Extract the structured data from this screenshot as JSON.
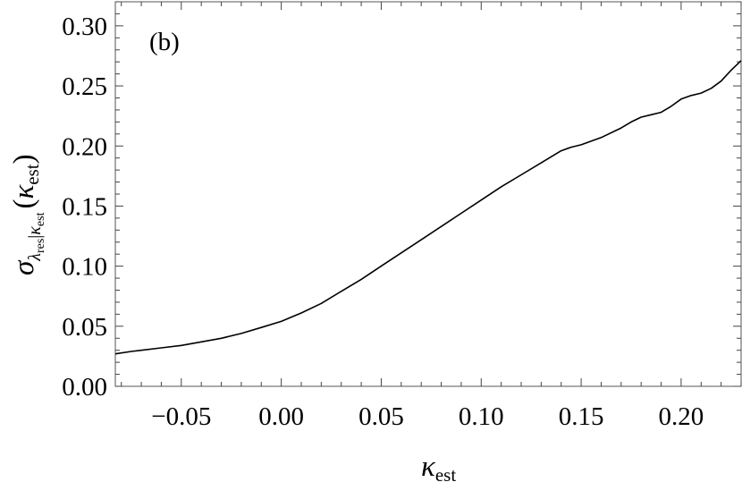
{
  "chart_data": {
    "type": "line",
    "panel_label": "(b)",
    "xlabel": {
      "main": "κ",
      "sub": "est"
    },
    "ylabel": {
      "sigma": "σ",
      "sub_lambda": "λ",
      "sub_lambda_sub": "res",
      "sub_bar": "|",
      "sub_kappa": "κ",
      "sub_kappa_sub": "est",
      "arg_open": "(",
      "arg_kappa": "κ",
      "arg_sub": "est",
      "arg_close": ")"
    },
    "xlim": [
      -0.083,
      0.23
    ],
    "ylim": [
      0.0,
      0.32
    ],
    "xticks": [
      {
        "value": -0.05,
        "label": "−0.05"
      },
      {
        "value": 0.0,
        "label": "0.00"
      },
      {
        "value": 0.05,
        "label": "0.05"
      },
      {
        "value": 0.1,
        "label": "0.10"
      },
      {
        "value": 0.15,
        "label": "0.15"
      },
      {
        "value": 0.2,
        "label": "0.20"
      }
    ],
    "yticks": [
      {
        "value": 0.0,
        "label": "0.00"
      },
      {
        "value": 0.05,
        "label": "0.05"
      },
      {
        "value": 0.1,
        "label": "0.10"
      },
      {
        "value": 0.15,
        "label": "0.15"
      },
      {
        "value": 0.2,
        "label": "0.20"
      },
      {
        "value": 0.25,
        "label": "0.25"
      },
      {
        "value": 0.3,
        "label": "0.30"
      }
    ],
    "grid": false,
    "line_color": "#000000",
    "series": [
      {
        "x": [
          -0.083,
          -0.075,
          -0.07,
          -0.06,
          -0.05,
          -0.04,
          -0.03,
          -0.02,
          -0.01,
          0.0,
          0.01,
          0.02,
          0.03,
          0.04,
          0.05,
          0.06,
          0.07,
          0.08,
          0.09,
          0.1,
          0.11,
          0.12,
          0.13,
          0.14,
          0.145,
          0.15,
          0.16,
          0.17,
          0.175,
          0.18,
          0.185,
          0.19,
          0.195,
          0.2,
          0.205,
          0.21,
          0.215,
          0.22,
          0.225,
          0.23
        ],
        "y": [
          0.027,
          0.029,
          0.03,
          0.032,
          0.034,
          0.037,
          0.04,
          0.044,
          0.049,
          0.054,
          0.061,
          0.069,
          0.079,
          0.089,
          0.1,
          0.111,
          0.122,
          0.133,
          0.144,
          0.155,
          0.166,
          0.176,
          0.186,
          0.196,
          0.199,
          0.201,
          0.207,
          0.215,
          0.22,
          0.224,
          0.226,
          0.228,
          0.233,
          0.239,
          0.242,
          0.244,
          0.248,
          0.254,
          0.263,
          0.271
        ]
      }
    ]
  }
}
